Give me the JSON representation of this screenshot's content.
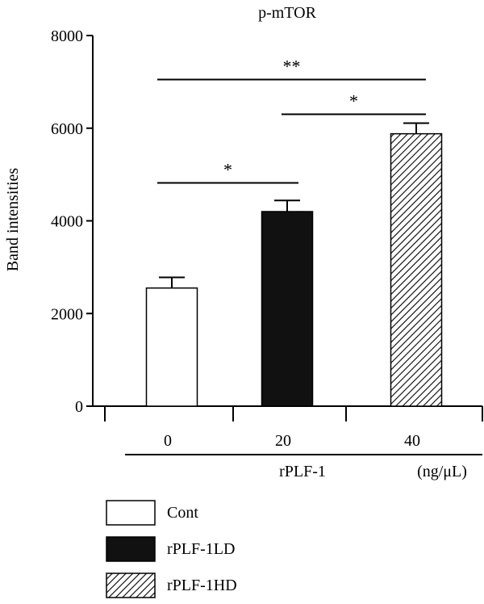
{
  "chart_data": {
    "type": "bar",
    "title": "p-mTOR",
    "ylabel": "Band intensities",
    "ylim": [
      0,
      8000
    ],
    "yticks": [
      0,
      2000,
      4000,
      6000,
      8000
    ],
    "x_values": [
      "0",
      "20",
      "40"
    ],
    "x_group_label": "rPLF-1",
    "x_unit": "(ng/μL)",
    "categories": [
      "Cont",
      "rPLF-1LD",
      "rPLF-1HD"
    ],
    "values": [
      2550,
      4200,
      5880
    ],
    "errors": [
      230,
      240,
      230
    ],
    "fills": [
      "white",
      "black",
      "hatched"
    ],
    "significance": [
      {
        "from": 0,
        "to": 2,
        "label": "**",
        "y": 7050
      },
      {
        "from": 1,
        "to": 2,
        "label": "*",
        "y": 6300
      },
      {
        "from": 0,
        "to": 1,
        "label": "*",
        "y": 4820
      }
    ],
    "legend": [
      {
        "label": "Cont",
        "fill": "white"
      },
      {
        "label": "rPLF-1LD",
        "fill": "black"
      },
      {
        "label": "rPLF-1HD",
        "fill": "hatched"
      }
    ],
    "grid": false
  },
  "colors": {
    "axis": "#000000",
    "bar_dark": "#111111",
    "bar_light": "#ffffff"
  }
}
